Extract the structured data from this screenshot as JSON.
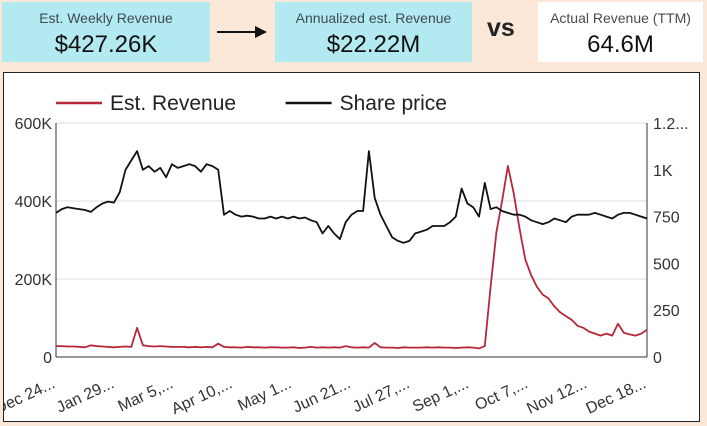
{
  "header": {
    "weekly": {
      "label": "Est. Weekly Revenue",
      "value": "$427.26K"
    },
    "annualized": {
      "label": "Annualized est. Revenue",
      "value": "$22.22M"
    },
    "vs": "vs",
    "actual": {
      "label": "Actual Revenue (TTM)",
      "value": "64.6M"
    }
  },
  "chart_data": {
    "type": "line",
    "legend_position": "top-left",
    "grid": {
      "horizontal": true,
      "vertical": false
    },
    "x_ticks": [
      "Dec 24...",
      "Jan 29...",
      "Mar 5,...",
      "Apr 10,...",
      "May 1...",
      "Jun 21...",
      "Jul 27,...",
      "Sep 1,...",
      "Oct 7,...",
      "Nov 12...",
      "Dec 18..."
    ],
    "y_left": {
      "min": 0,
      "max": 600000,
      "ticks": [
        "0",
        "200K",
        "400K",
        "600K"
      ]
    },
    "y_right": {
      "min": 0,
      "max": 1250,
      "ticks": [
        "0",
        "250",
        "500",
        "750",
        "1K",
        "1.2..."
      ]
    },
    "series": [
      {
        "name": "Est. Revenue",
        "color": "#b5283a",
        "axis": "left",
        "values": [
          28000,
          28000,
          27000,
          27000,
          26000,
          25000,
          30000,
          28000,
          27000,
          26000,
          25000,
          26000,
          27000,
          26000,
          75000,
          30000,
          28000,
          27000,
          28000,
          27000,
          26000,
          26000,
          26000,
          25000,
          26000,
          25000,
          26000,
          25000,
          34000,
          26000,
          25000,
          25000,
          24000,
          26000,
          25000,
          25000,
          24000,
          25000,
          25000,
          24000,
          24000,
          25000,
          23000,
          24000,
          26000,
          24000,
          25000,
          24000,
          25000,
          24000,
          28000,
          25000,
          24000,
          25000,
          24000,
          36000,
          25000,
          24000,
          24000,
          23000,
          25000,
          24000,
          24000,
          24000,
          25000,
          24000,
          25000,
          24000,
          24000,
          23000,
          24000,
          25000,
          24000,
          22000,
          28000,
          180000,
          320000,
          400000,
          490000,
          420000,
          330000,
          250000,
          210000,
          180000,
          160000,
          150000,
          130000,
          115000,
          105000,
          95000,
          80000,
          75000,
          65000,
          60000,
          55000,
          60000,
          55000,
          85000,
          62000,
          58000,
          55000,
          60000,
          70000
        ]
      },
      {
        "name": "Share price",
        "color": "#111111",
        "axis": "right",
        "values": [
          770,
          790,
          800,
          795,
          790,
          785,
          775,
          800,
          820,
          830,
          825,
          880,
          1000,
          1050,
          1100,
          1000,
          1020,
          990,
          1010,
          960,
          1030,
          1010,
          1020,
          1030,
          1020,
          990,
          1030,
          1020,
          1000,
          760,
          780,
          760,
          750,
          755,
          750,
          740,
          740,
          750,
          740,
          750,
          740,
          750,
          740,
          745,
          730,
          720,
          660,
          700,
          660,
          630,
          720,
          760,
          780,
          780,
          1100,
          850,
          760,
          700,
          640,
          620,
          610,
          620,
          660,
          670,
          680,
          700,
          700,
          700,
          720,
          750,
          900,
          820,
          800,
          750,
          930,
          790,
          800,
          780,
          770,
          760,
          760,
          750,
          730,
          720,
          710,
          720,
          740,
          730,
          720,
          750,
          760,
          760,
          760,
          770,
          760,
          750,
          740,
          760,
          770,
          770,
          760,
          750,
          740
        ]
      }
    ]
  }
}
